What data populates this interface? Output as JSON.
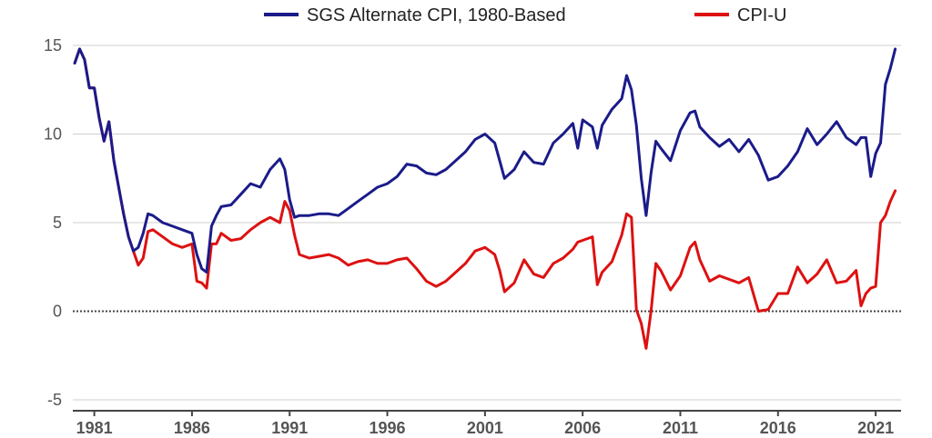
{
  "chart_data": {
    "type": "line",
    "title": "",
    "xlabel": "",
    "ylabel": "",
    "xlim": [
      1979.9,
      2022.3
    ],
    "ylim": [
      -5,
      15
    ],
    "yticks": [
      "-5",
      "0",
      "5",
      "10",
      "15"
    ],
    "xticks": [
      "1981",
      "1986",
      "1991",
      "1996",
      "2001",
      "2006",
      "2011",
      "2016",
      "2021"
    ],
    "grid": "horizontal",
    "zero_line": "dotted",
    "legend_position": "top",
    "series": [
      {
        "name": "SGS Alternate CPI, 1980-Based",
        "color": "#1b1b8a",
        "x": [
          1980.0,
          1980.25,
          1980.5,
          1980.75,
          1981.0,
          1981.25,
          1981.5,
          1981.75,
          1982.0,
          1982.25,
          1982.5,
          1982.75,
          1983.0,
          1983.25,
          1983.5,
          1983.75,
          1984.0,
          1984.5,
          1985.0,
          1985.5,
          1986.0,
          1986.25,
          1986.5,
          1986.75,
          1987.0,
          1987.25,
          1987.5,
          1988.0,
          1988.5,
          1989.0,
          1989.5,
          1990.0,
          1990.5,
          1990.75,
          1991.0,
          1991.25,
          1991.5,
          1992.0,
          1992.5,
          1993.0,
          1993.5,
          1994.0,
          1994.5,
          1995.0,
          1995.5,
          1996.0,
          1996.5,
          1997.0,
          1997.5,
          1998.0,
          1998.5,
          1999.0,
          1999.5,
          2000.0,
          2000.5,
          2001.0,
          2001.5,
          2001.75,
          2002.0,
          2002.5,
          2003.0,
          2003.5,
          2004.0,
          2004.5,
          2005.0,
          2005.5,
          2005.75,
          2006.0,
          2006.5,
          2006.75,
          2007.0,
          2007.5,
          2008.0,
          2008.25,
          2008.5,
          2008.75,
          2009.0,
          2009.25,
          2009.5,
          2009.75,
          2010.0,
          2010.5,
          2011.0,
          2011.5,
          2011.75,
          2012.0,
          2012.5,
          2013.0,
          2013.5,
          2014.0,
          2014.5,
          2015.0,
          2015.5,
          2016.0,
          2016.5,
          2017.0,
          2017.5,
          2018.0,
          2018.5,
          2019.0,
          2019.5,
          2020.0,
          2020.25,
          2020.5,
          2020.75,
          2021.0,
          2021.25,
          2021.5,
          2021.75,
          2022.0
        ],
        "y": [
          14.0,
          14.8,
          14.2,
          12.6,
          12.6,
          10.9,
          9.6,
          10.7,
          8.5,
          7.0,
          5.5,
          4.2,
          3.4,
          3.6,
          4.4,
          5.5,
          5.4,
          5.0,
          4.8,
          4.6,
          4.4,
          3.2,
          2.4,
          2.2,
          4.8,
          5.4,
          5.9,
          6.0,
          6.6,
          7.2,
          7.0,
          8.0,
          8.6,
          8.0,
          6.3,
          5.3,
          5.4,
          5.4,
          5.5,
          5.5,
          5.4,
          5.8,
          6.2,
          6.6,
          7.0,
          7.2,
          7.6,
          8.3,
          8.2,
          7.8,
          7.7,
          8.0,
          8.5,
          9.0,
          9.7,
          10.0,
          9.5,
          8.5,
          7.5,
          8.0,
          9.0,
          8.4,
          8.3,
          9.5,
          10.0,
          10.6,
          9.2,
          10.8,
          10.4,
          9.2,
          10.5,
          11.4,
          12.0,
          13.3,
          12.5,
          10.5,
          7.5,
          5.4,
          7.8,
          9.6,
          9.2,
          8.5,
          10.2,
          11.2,
          11.3,
          10.4,
          9.8,
          9.3,
          9.7,
          9.0,
          9.7,
          8.8,
          7.4,
          7.6,
          8.2,
          9.0,
          10.3,
          9.4,
          10.0,
          10.7,
          9.8,
          9.4,
          9.8,
          9.8,
          7.6,
          8.9,
          9.5,
          12.8,
          13.7,
          14.8
        ]
      },
      {
        "name": "CPI-U",
        "color": "#dd1111",
        "x": [
          1980.0,
          1980.25,
          1980.5,
          1980.75,
          1981.0,
          1981.25,
          1981.5,
          1981.75,
          1982.0,
          1982.25,
          1982.5,
          1982.75,
          1983.0,
          1983.25,
          1983.5,
          1983.75,
          1984.0,
          1984.5,
          1985.0,
          1985.5,
          1986.0,
          1986.25,
          1986.5,
          1986.75,
          1987.0,
          1987.25,
          1987.5,
          1988.0,
          1988.5,
          1989.0,
          1989.5,
          1990.0,
          1990.5,
          1990.75,
          1991.0,
          1991.25,
          1991.5,
          1992.0,
          1992.5,
          1993.0,
          1993.5,
          1994.0,
          1994.5,
          1995.0,
          1995.5,
          1996.0,
          1996.5,
          1997.0,
          1997.5,
          1998.0,
          1998.5,
          1999.0,
          1999.5,
          2000.0,
          2000.5,
          2001.0,
          2001.5,
          2001.75,
          2002.0,
          2002.5,
          2003.0,
          2003.5,
          2004.0,
          2004.5,
          2005.0,
          2005.5,
          2005.75,
          2006.0,
          2006.5,
          2006.75,
          2007.0,
          2007.5,
          2008.0,
          2008.25,
          2008.5,
          2008.75,
          2009.0,
          2009.25,
          2009.5,
          2009.75,
          2010.0,
          2010.5,
          2011.0,
          2011.5,
          2011.75,
          2012.0,
          2012.5,
          2013.0,
          2013.5,
          2014.0,
          2014.5,
          2015.0,
          2015.5,
          2016.0,
          2016.5,
          2017.0,
          2017.5,
          2018.0,
          2018.5,
          2019.0,
          2019.5,
          2020.0,
          2020.25,
          2020.5,
          2020.75,
          2021.0,
          2021.25,
          2021.5,
          2021.75,
          2022.0
        ],
        "y": [
          14.0,
          14.8,
          14.2,
          12.6,
          12.6,
          10.9,
          9.6,
          10.7,
          8.5,
          7.0,
          5.5,
          4.2,
          3.4,
          2.6,
          3.0,
          4.5,
          4.6,
          4.2,
          3.8,
          3.6,
          3.8,
          1.7,
          1.6,
          1.3,
          3.8,
          3.8,
          4.4,
          4.0,
          4.1,
          4.6,
          5.0,
          5.3,
          5.0,
          6.2,
          5.7,
          4.3,
          3.2,
          3.0,
          3.1,
          3.2,
          3.0,
          2.6,
          2.8,
          2.9,
          2.7,
          2.7,
          2.9,
          3.0,
          2.4,
          1.7,
          1.4,
          1.7,
          2.2,
          2.7,
          3.4,
          3.6,
          3.2,
          2.3,
          1.1,
          1.6,
          2.9,
          2.1,
          1.9,
          2.7,
          3.0,
          3.5,
          3.9,
          4.0,
          4.2,
          1.5,
          2.2,
          2.8,
          4.3,
          5.5,
          5.3,
          0.1,
          -0.7,
          -2.1,
          0.0,
          2.7,
          2.3,
          1.2,
          2.0,
          3.6,
          3.9,
          2.9,
          1.7,
          2.0,
          1.8,
          1.6,
          1.9,
          0.0,
          0.1,
          1.0,
          1.0,
          2.5,
          1.6,
          2.1,
          2.9,
          1.6,
          1.7,
          2.3,
          0.3,
          1.0,
          1.3,
          1.4,
          5.0,
          5.4,
          6.2,
          6.8
        ]
      }
    ]
  }
}
